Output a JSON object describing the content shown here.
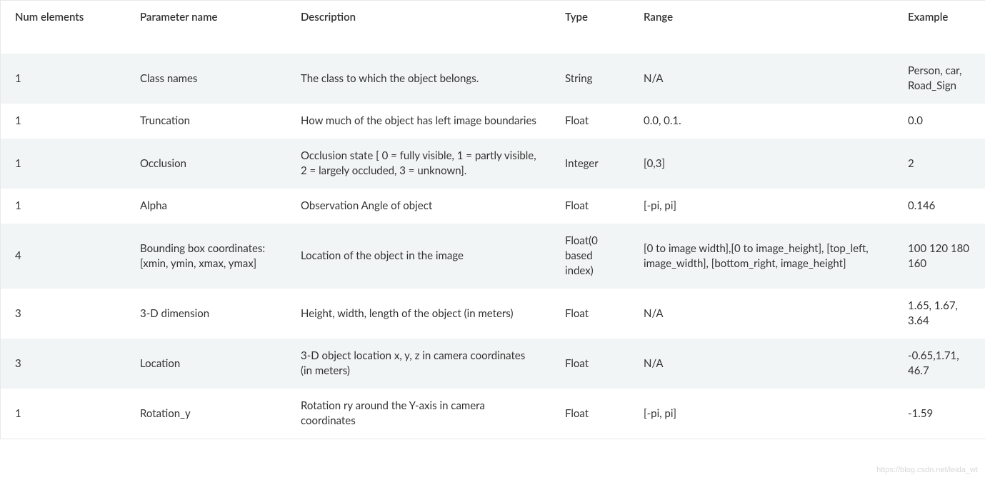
{
  "table": {
    "columns": [
      "Num elements",
      "Parameter name",
      "Description",
      "Type",
      "Range",
      "Example"
    ],
    "rows": [
      {
        "num": "1",
        "param": "Class names",
        "desc": "The class to which the object belongs.",
        "type": "String",
        "range": "N/A",
        "example": "Person, car, Road_Sign"
      },
      {
        "num": "1",
        "param": "Truncation",
        "desc": "How much of the object has left image boundaries",
        "type": "Float",
        "range": "0.0, 0.1.",
        "example": "0.0"
      },
      {
        "num": "1",
        "param": "Occlusion",
        "desc": "Occlusion state [ 0 = fully visible, 1 = partly visible, 2 = largely occluded, 3 = unknown].",
        "type": "Integer",
        "range": "[0,3]",
        "example": "2"
      },
      {
        "num": "1",
        "param": "Alpha",
        "desc": "Observation Angle of object",
        "type": "Float",
        "range": "[-pi, pi]",
        "example": "0.146"
      },
      {
        "num": "4",
        "param": "Bounding box coordinates: [xmin, ymin, xmax, ymax]",
        "desc": "Location of the object in the image",
        "type": "Float(0 based index)",
        "range": "[0 to image width],[0 to image_height], [top_left, image_width], [bottom_right, image_height]",
        "example": "100 120 180 160"
      },
      {
        "num": "3",
        "param": "3-D dimension",
        "desc": "Height, width, length of the object (in meters)",
        "type": "Float",
        "range": "N/A",
        "example": "1.65, 1.67, 3.64"
      },
      {
        "num": "3",
        "param": "Location",
        "desc": "3-D object location x, y, z in camera coordinates (in meters)",
        "type": "Float",
        "range": "N/A",
        "example": "-0.65,1.71, 46.7"
      },
      {
        "num": "1",
        "param": "Rotation_y",
        "desc": "Rotation ry around the Y-axis in camera coordinates",
        "type": "Float",
        "range": "[-pi, pi]",
        "example": "-1.59"
      }
    ]
  },
  "watermark": "https://blog.csdn.net/leida_wt"
}
